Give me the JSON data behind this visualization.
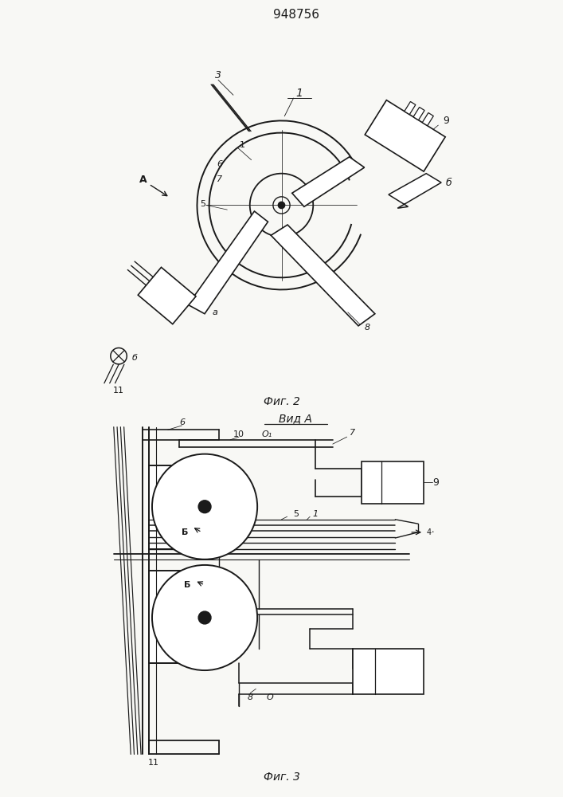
{
  "title": "948756",
  "fig2_label": "Фиг. 2",
  "fig3_label": "Фиг. 3",
  "vid_a_label": "Вид A",
  "bg_color": "#f8f8f5",
  "line_color": "#1a1a1a",
  "lw": 1.0
}
